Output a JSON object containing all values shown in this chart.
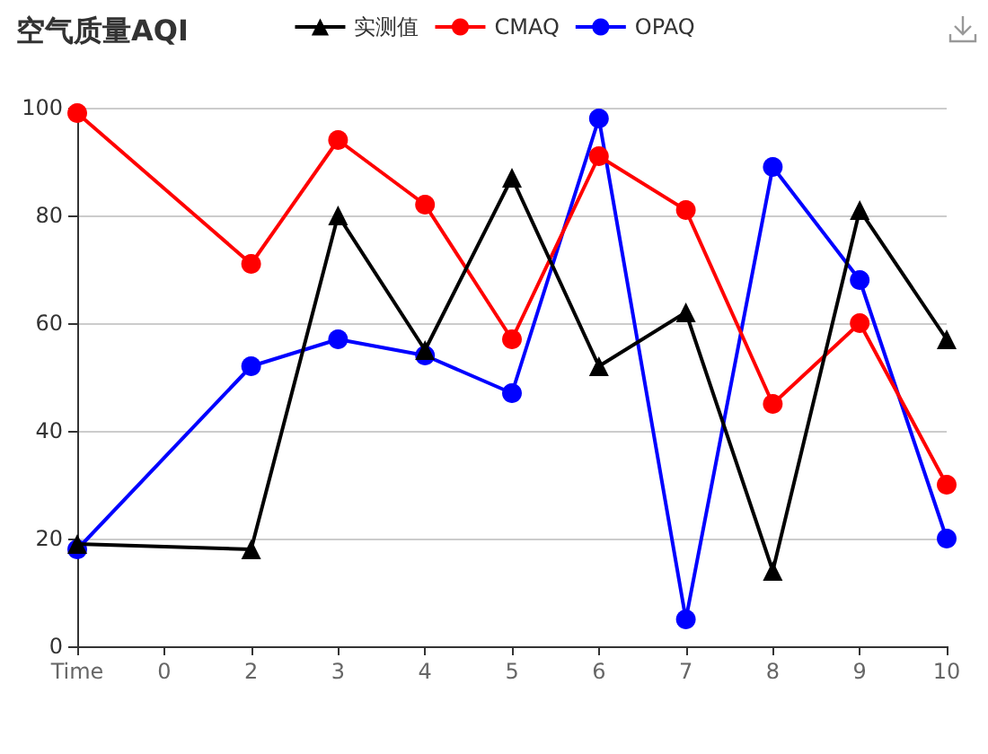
{
  "chart_data": {
    "type": "line",
    "title": "空气质量AQI",
    "categories": [
      "Time",
      "0",
      "2",
      "3",
      "4",
      "5",
      "6",
      "7",
      "8",
      "9",
      "10"
    ],
    "series": [
      {
        "name": "实测值",
        "color": "#000000",
        "marker": "triangle",
        "values": [
          19,
          null,
          18,
          80,
          55,
          87,
          52,
          62,
          14,
          81,
          57
        ]
      },
      {
        "name": "CMAQ",
        "color": "#ff0000",
        "marker": "circle",
        "values": [
          99,
          null,
          71,
          94,
          82,
          57,
          91,
          81,
          45,
          60,
          30
        ]
      },
      {
        "name": "OPAQ",
        "color": "#0000ff",
        "marker": "circle",
        "values": [
          18,
          null,
          52,
          57,
          54,
          47,
          98,
          5,
          89,
          68,
          20
        ]
      }
    ],
    "ylim": [
      0,
      100
    ],
    "yticks": [
      0,
      20,
      40,
      60,
      80,
      100
    ],
    "grid": "y",
    "legend": "top"
  }
}
